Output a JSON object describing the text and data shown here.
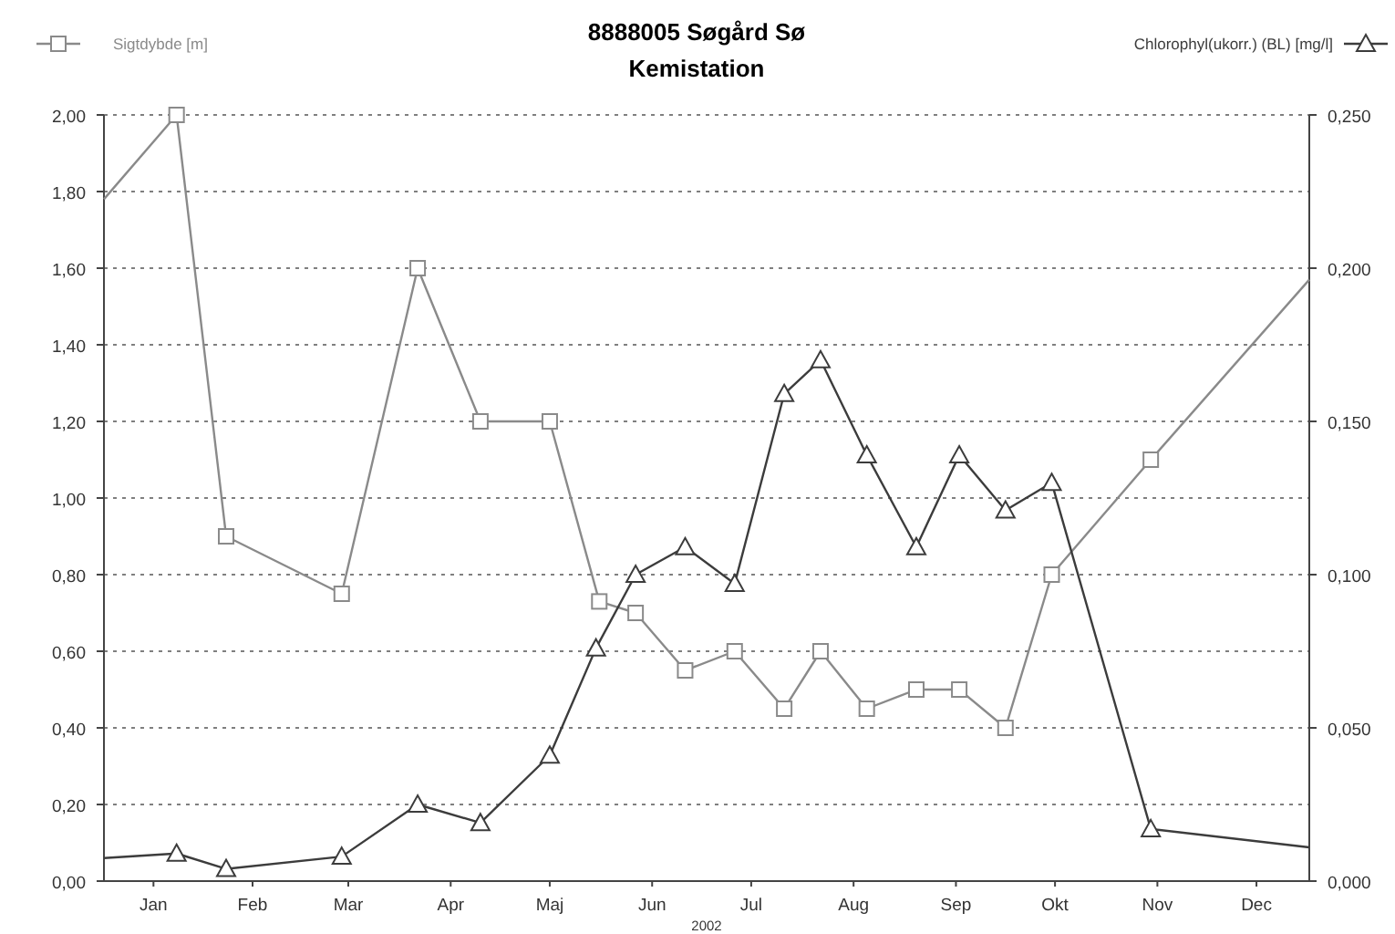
{
  "chart_data": {
    "type": "line",
    "title": "8888005 Søgård Sø",
    "subtitle": "Kemistation",
    "xlabel": "2002",
    "xlim": [
      "2002-01-01",
      "2003-01-01"
    ],
    "xticks": [
      {
        "value": "2002-01-16",
        "label": "Jan"
      },
      {
        "value": "2002-02-15",
        "label": "Feb"
      },
      {
        "value": "2002-03-16",
        "label": "Mar"
      },
      {
        "value": "2002-04-16",
        "label": "Apr"
      },
      {
        "value": "2002-05-16",
        "label": "Maj"
      },
      {
        "value": "2002-06-16",
        "label": "Jun"
      },
      {
        "value": "2002-07-16",
        "label": "Jul"
      },
      {
        "value": "2002-08-16",
        "label": "Aug"
      },
      {
        "value": "2002-09-16",
        "label": "Sep"
      },
      {
        "value": "2002-10-16",
        "label": "Okt"
      },
      {
        "value": "2002-11-16",
        "label": "Nov"
      },
      {
        "value": "2002-12-16",
        "label": "Dec"
      }
    ],
    "ylim": [
      0,
      2
    ],
    "yticks": [
      {
        "value": 0,
        "label": "0,00"
      },
      {
        "value": 0.2,
        "label": "0,20"
      },
      {
        "value": 0.4,
        "label": "0,40"
      },
      {
        "value": 0.6,
        "label": "0,60"
      },
      {
        "value": 0.8,
        "label": "0,80"
      },
      {
        "value": 1,
        "label": "1,00"
      },
      {
        "value": 1.2,
        "label": "1,20"
      },
      {
        "value": 1.4,
        "label": "1,40"
      },
      {
        "value": 1.6,
        "label": "1,60"
      },
      {
        "value": 1.8,
        "label": "1,80"
      },
      {
        "value": 2,
        "label": "2,00"
      }
    ],
    "y2lim": [
      0,
      0.25
    ],
    "y2ticks": [
      {
        "value": 0,
        "label": "0,000"
      },
      {
        "value": 0.05,
        "label": "0,050"
      },
      {
        "value": 0.1,
        "label": "0,100"
      },
      {
        "value": 0.15,
        "label": "0,150"
      },
      {
        "value": 0.2,
        "label": "0,200"
      },
      {
        "value": 0.25,
        "label": "0,250"
      }
    ],
    "grid": "y",
    "legend": "top",
    "line_style": "solid",
    "series": [
      {
        "name": "Sigtdybde [m]",
        "color": "#8a8a8a",
        "marker": "square",
        "x": [
          "2002-01-01",
          "2002-01-23",
          "2002-02-07",
          "2002-03-14",
          "2002-04-06",
          "2002-04-25",
          "2002-05-16",
          "2002-05-31",
          "2002-06-11",
          "2002-06-26",
          "2002-07-11",
          "2002-07-26",
          "2002-08-06",
          "2002-08-20",
          "2002-09-04",
          "2002-09-17",
          "2002-10-01",
          "2002-10-15",
          "2002-11-14",
          "2003-01-01"
        ],
        "values": [
          1.78,
          2.0,
          0.9,
          0.75,
          1.6,
          1.2,
          1.2,
          0.73,
          0.7,
          0.55,
          0.6,
          0.45,
          0.6,
          0.45,
          0.5,
          0.5,
          0.4,
          0.8,
          1.1,
          1.57
        ]
      },
      {
        "name": "Chlorophyl(ukorr.) (BL) [mg/l]",
        "color": "#3c3c3c",
        "marker": "triangle",
        "axis": "y2",
        "x": [
          "2002-01-01",
          "2002-01-23",
          "2002-02-07",
          "2002-03-14",
          "2002-04-06",
          "2002-04-25",
          "2002-05-16",
          "2002-05-30",
          "2002-06-11",
          "2002-06-26",
          "2002-07-11",
          "2002-07-26",
          "2002-08-06",
          "2002-08-20",
          "2002-09-04",
          "2002-09-17",
          "2002-10-01",
          "2002-10-15",
          "2002-11-14",
          "2003-01-01"
        ],
        "values": [
          0.0075,
          0.009,
          0.004,
          0.008,
          0.025,
          0.019,
          0.041,
          0.076,
          0.1,
          0.109,
          0.097,
          0.159,
          0.17,
          0.139,
          0.109,
          0.139,
          0.121,
          0.13,
          0.017,
          0.011
        ]
      }
    ]
  }
}
